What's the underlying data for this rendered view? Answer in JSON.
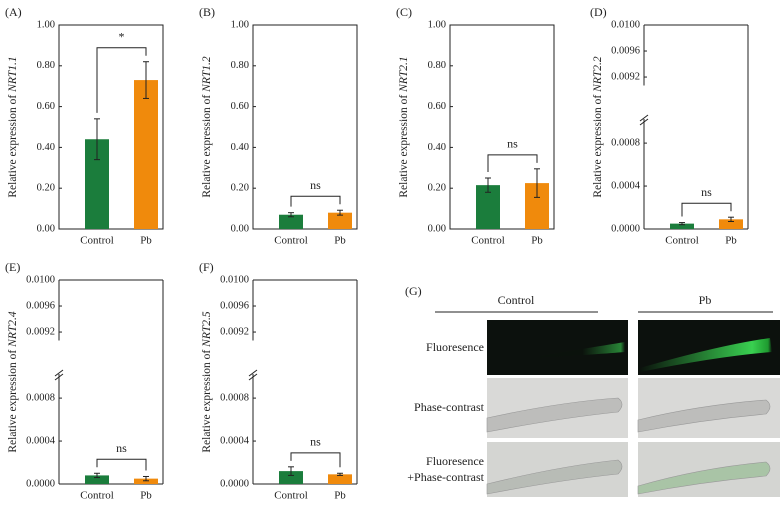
{
  "chart_data": [
    {
      "type": "bar",
      "panel": "(A)",
      "ylabel": [
        "Relative expression of",
        "NRT1.1"
      ],
      "categories": [
        "Control",
        "Pb"
      ],
      "values": [
        0.44,
        0.73
      ],
      "errors": [
        0.1,
        0.09
      ],
      "colors": [
        "#1b7d3c",
        "#f08a0c"
      ],
      "ylim": [
        0,
        1.0
      ],
      "yticks": [
        {
          "value": 0,
          "label": "0.00"
        },
        {
          "value": 0.2,
          "label": "0.20"
        },
        {
          "value": 0.4,
          "label": "0.40"
        },
        {
          "value": 0.6,
          "label": "0.60"
        },
        {
          "value": 0.8,
          "label": "0.80"
        },
        {
          "value": 1.0,
          "label": "1.00"
        }
      ],
      "significance": "*"
    },
    {
      "type": "bar",
      "panel": "(B)",
      "ylabel": [
        "Relative expression of",
        "NRT1.2"
      ],
      "categories": [
        "Control",
        "Pb"
      ],
      "values": [
        0.07,
        0.08
      ],
      "errors": [
        0.01,
        0.012
      ],
      "colors": [
        "#1b7d3c",
        "#f08a0c"
      ],
      "ylim": [
        0,
        1.0
      ],
      "yticks": [
        {
          "value": 0,
          "label": "0.00"
        },
        {
          "value": 0.2,
          "label": "0.20"
        },
        {
          "value": 0.4,
          "label": "0.40"
        },
        {
          "value": 0.6,
          "label": "0.60"
        },
        {
          "value": 0.8,
          "label": "0.80"
        },
        {
          "value": 1.0,
          "label": "1.00"
        }
      ],
      "significance": "ns"
    },
    {
      "type": "bar",
      "panel": "(C)",
      "ylabel": [
        "Relative expression of",
        "NRT2.1"
      ],
      "categories": [
        "Control",
        "Pb"
      ],
      "values": [
        0.215,
        0.225
      ],
      "errors": [
        0.035,
        0.07
      ],
      "colors": [
        "#1b7d3c",
        "#f08a0c"
      ],
      "ylim": [
        0,
        1.0
      ],
      "yticks": [
        {
          "value": 0,
          "label": "0.00"
        },
        {
          "value": 0.2,
          "label": "0.20"
        },
        {
          "value": 0.4,
          "label": "0.40"
        },
        {
          "value": 0.6,
          "label": "0.60"
        },
        {
          "value": 0.8,
          "label": "0.80"
        },
        {
          "value": 1.0,
          "label": "1.00"
        }
      ],
      "significance": "ns"
    },
    {
      "type": "bar",
      "panel": "(D)",
      "ylabel": [
        "Relative expression of",
        "NRT2.2"
      ],
      "categories": [
        "Control",
        "Pb"
      ],
      "values": [
        5e-05,
        9e-05
      ],
      "errors": [
        1e-05,
        2e-05
      ],
      "colors": [
        "#1b7d3c",
        "#f08a0c"
      ],
      "ylim": [
        0,
        0.01
      ],
      "y_break": [
        0.00095,
        0.0091
      ],
      "yticks": [
        {
          "value": 0,
          "label": "0.0000"
        },
        {
          "value": 0.0004,
          "label": "0.0004"
        },
        {
          "value": 0.0008,
          "label": "0.0008"
        },
        {
          "value": 0.0092,
          "label": "0.0092"
        },
        {
          "value": 0.0096,
          "label": "0.0096"
        },
        {
          "value": 0.01,
          "label": "0.0100"
        }
      ],
      "significance": "ns"
    },
    {
      "type": "bar",
      "panel": "(E)",
      "ylabel": [
        "Relative expression of",
        "NRT2.4"
      ],
      "categories": [
        "Control",
        "Pb"
      ],
      "values": [
        8e-05,
        5e-05
      ],
      "errors": [
        2e-05,
        2e-05
      ],
      "colors": [
        "#1b7d3c",
        "#f08a0c"
      ],
      "ylim": [
        0,
        0.01
      ],
      "y_break": [
        0.00095,
        0.0091
      ],
      "yticks": [
        {
          "value": 0,
          "label": "0.0000"
        },
        {
          "value": 0.0004,
          "label": "0.0004"
        },
        {
          "value": 0.0008,
          "label": "0.0008"
        },
        {
          "value": 0.0092,
          "label": "0.0092"
        },
        {
          "value": 0.0096,
          "label": "0.0096"
        },
        {
          "value": 0.01,
          "label": "0.0100"
        }
      ],
      "significance": "ns"
    },
    {
      "type": "bar",
      "panel": "(F)",
      "ylabel": [
        "Relative expression of",
        "NRT2.5"
      ],
      "categories": [
        "Control",
        "Pb"
      ],
      "values": [
        0.00012,
        9e-05
      ],
      "errors": [
        4e-05,
        1e-05
      ],
      "colors": [
        "#1b7d3c",
        "#f08a0c"
      ],
      "ylim": [
        0,
        0.01
      ],
      "y_break": [
        0.00095,
        0.0091
      ],
      "yticks": [
        {
          "value": 0,
          "label": "0.0000"
        },
        {
          "value": 0.0004,
          "label": "0.0004"
        },
        {
          "value": 0.0008,
          "label": "0.0008"
        },
        {
          "value": 0.0092,
          "label": "0.0092"
        },
        {
          "value": 0.0096,
          "label": "0.0096"
        },
        {
          "value": 0.01,
          "label": "0.0100"
        }
      ],
      "significance": "ns"
    }
  ],
  "images": {
    "panel": "(G)",
    "columns": [
      "Control",
      "Pb"
    ],
    "rows": [
      [
        "Fluoresence"
      ],
      [
        "Phase-contrast"
      ],
      [
        "Fluoresence",
        "+Phase-contrast"
      ]
    ]
  }
}
